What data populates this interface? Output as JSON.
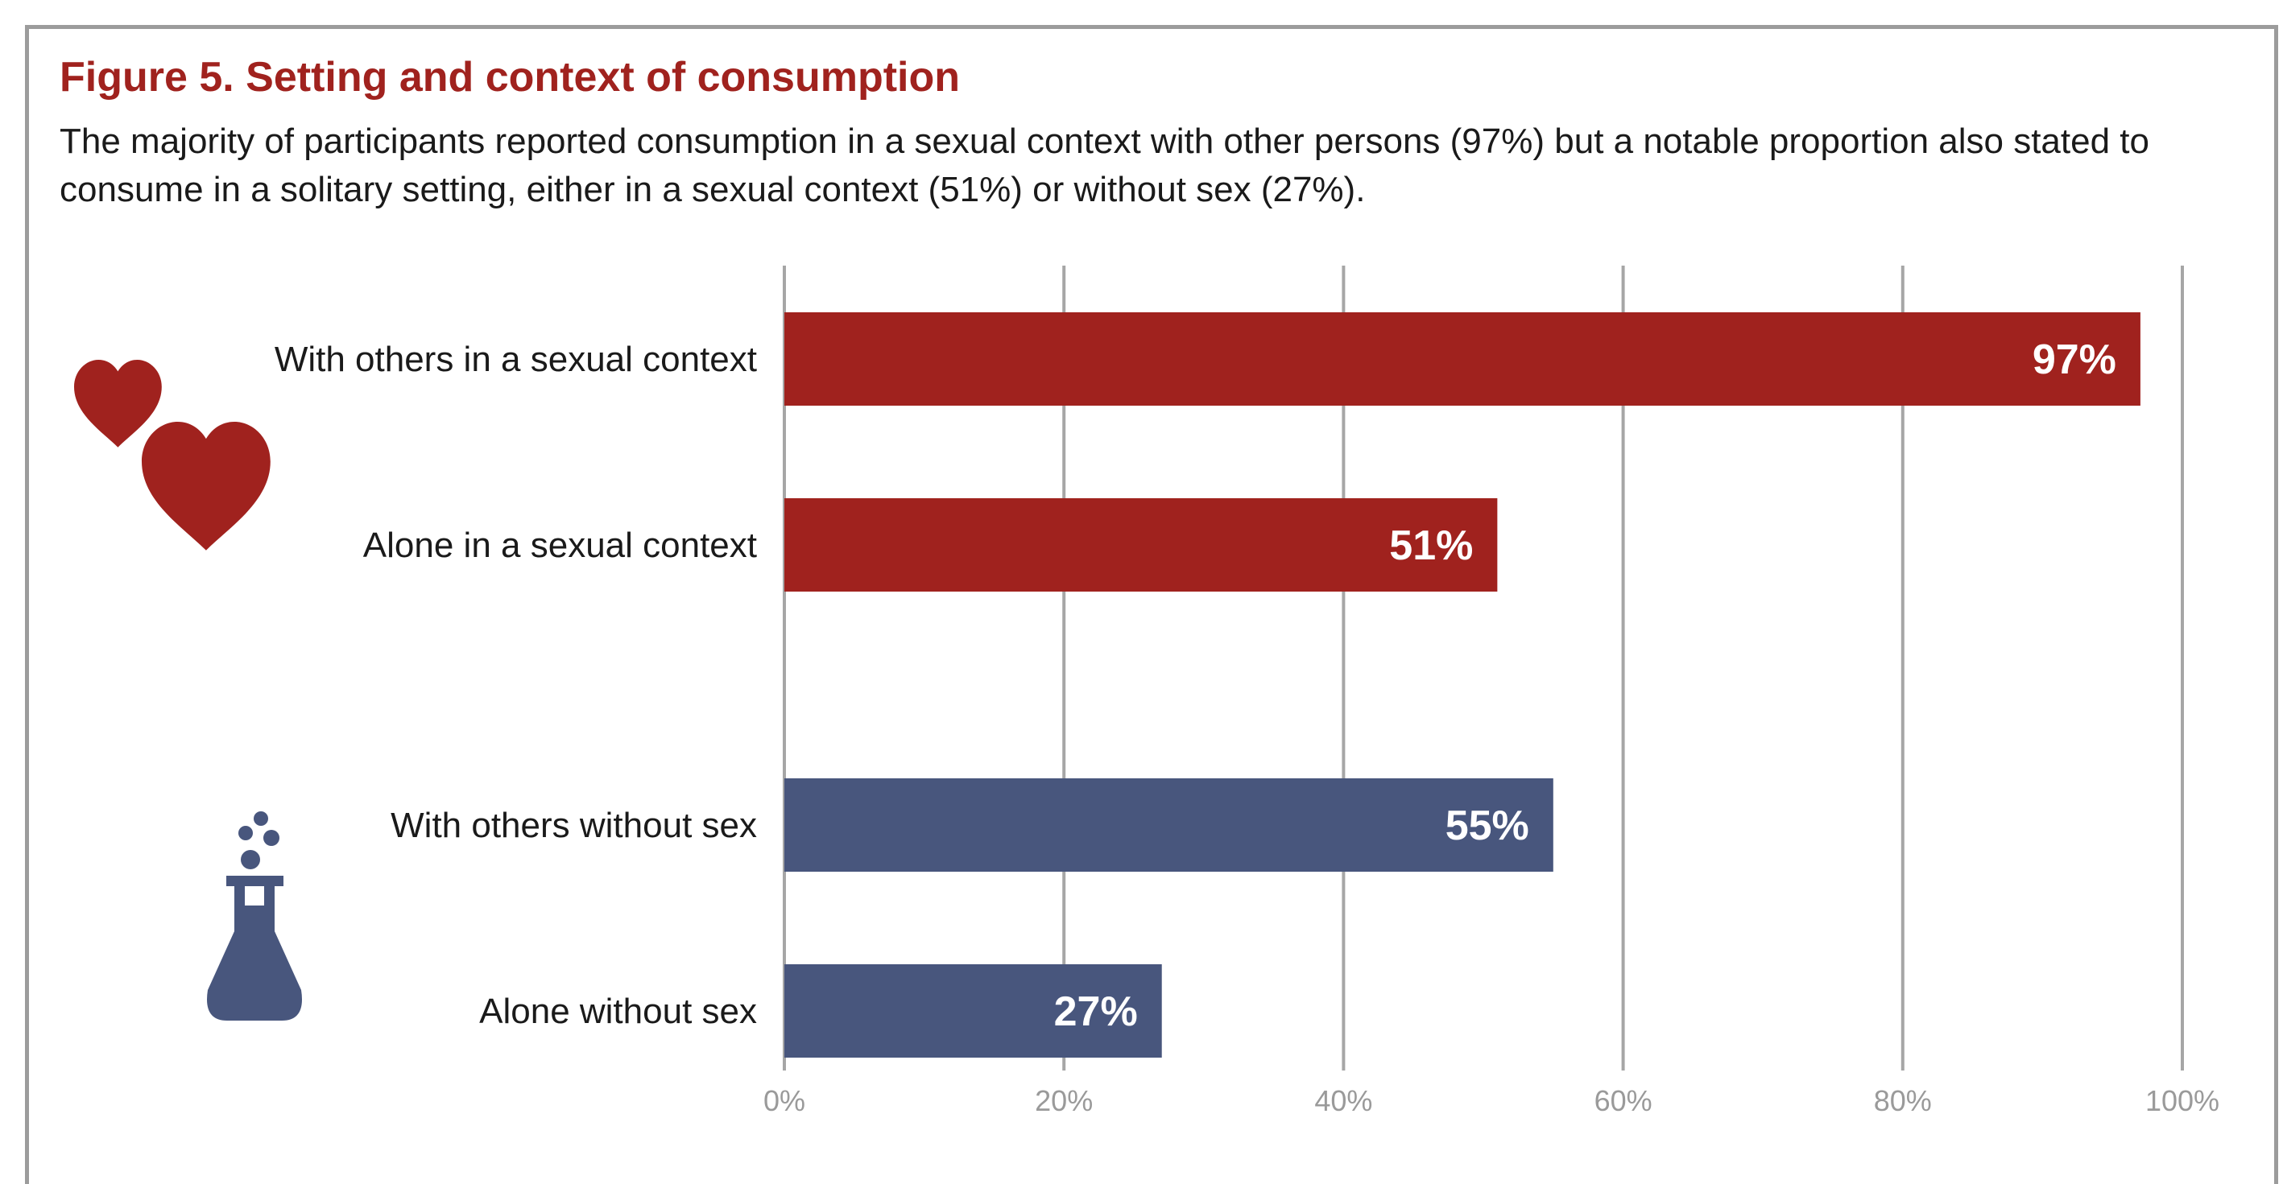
{
  "title": "Figure 5. Setting and context of consumption",
  "subtitle": "The majority of participants reported consumption in a sexual context with other persons (97%) but a notable proportion also stated to consume in a solitary setting, either in a sexual context (51%) or without sex (27%).",
  "icons": {
    "hearts": "hearts-icon",
    "flask": "flask-icon"
  },
  "colors": {
    "sexual": "#a0221e",
    "non_sexual": "#48567d",
    "grid": "#a6a6a6",
    "tick_text": "#9a9a9a"
  },
  "chart_data": {
    "type": "bar",
    "orientation": "horizontal",
    "categories": [
      "With others in a sexual context",
      "Alone in a sexual context",
      "With others without sex",
      "Alone without sex"
    ],
    "values": [
      97,
      51,
      55,
      27
    ],
    "value_labels": [
      "97%",
      "51%",
      "55%",
      "27%"
    ],
    "bar_colors": [
      "#a0221e",
      "#a0221e",
      "#48567d",
      "#48567d"
    ],
    "groups": [
      {
        "icon": "hearts-icon",
        "categories": [
          0,
          1
        ]
      },
      {
        "icon": "flask-icon",
        "categories": [
          2,
          3
        ]
      }
    ],
    "xlim": [
      0,
      100
    ],
    "xticks": [
      0,
      20,
      40,
      60,
      80,
      100
    ],
    "xtick_labels": [
      "0%",
      "20%",
      "40%",
      "60%",
      "80%",
      "100%"
    ],
    "grid": true,
    "legend": "none"
  }
}
